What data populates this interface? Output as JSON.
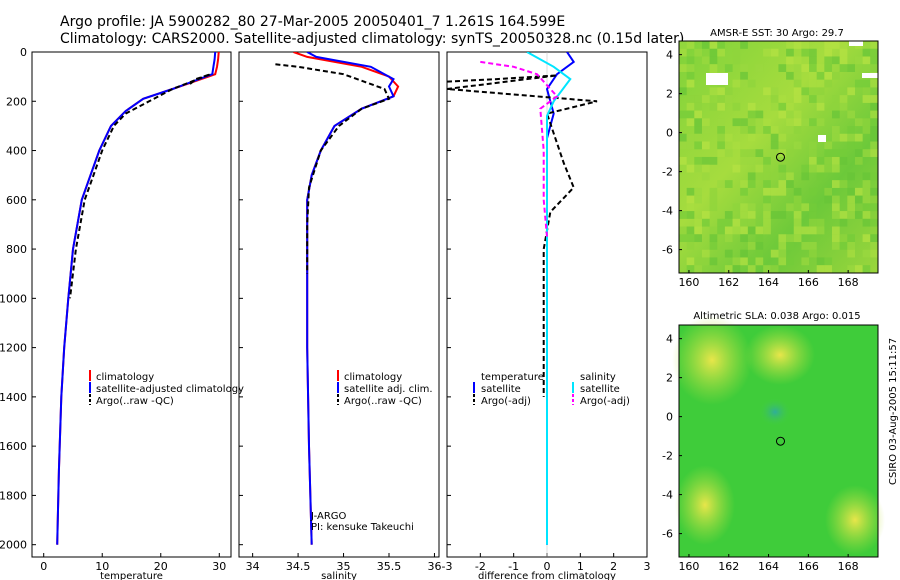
{
  "header": {
    "title_line1": "Argo profile: JA 5900282_80 27-Mar-2005 20050401_7 1.261S 164.599E",
    "title_line2": "Climatology: CARS2000. Satellite-adjusted climatology: synTS_20050328.nc (0.15d later)"
  },
  "colors": {
    "climatology": "#ff0000",
    "satellite": "#0000ff",
    "argo": "#000000",
    "salinity_sat": "#00e5ff",
    "salinity_argo": "#ff00ff",
    "sst_map": "#8ccf3c",
    "sla_map": "#33cc33"
  },
  "chart_data": [
    {
      "id": "temperature",
      "type": "line",
      "xlabel": "temperature",
      "ylabel": "",
      "xlim": [
        -2,
        32
      ],
      "ylim": [
        2050,
        0
      ],
      "xticks": [
        0,
        10,
        20,
        30
      ],
      "yticks": [
        0,
        200,
        400,
        600,
        800,
        1000,
        1200,
        1400,
        1600,
        1800,
        2000
      ],
      "legend": [
        "climatology",
        "satellite-adjusted climatology",
        "Argo(..raw -QC)"
      ],
      "series": [
        {
          "name": "climatology",
          "color": "#ff0000",
          "dash": false,
          "x": [
            29.9,
            29.8,
            29.6,
            29.3,
            22,
            17,
            14,
            11.5,
            9.5,
            8,
            6.5,
            5,
            4.2,
            3.5,
            3,
            2.6,
            2.3
          ],
          "y": [
            0,
            30,
            60,
            90,
            150,
            190,
            240,
            300,
            400,
            500,
            600,
            800,
            1000,
            1200,
            1400,
            1700,
            2000
          ]
        },
        {
          "name": "satellite-adjusted climatology",
          "color": "#0000ff",
          "dash": false,
          "x": [
            29.3,
            29.2,
            29.0,
            28.8,
            22,
            17,
            14,
            11.5,
            9.5,
            8,
            6.5,
            5,
            4.2,
            3.5,
            3,
            2.6,
            2.3
          ],
          "y": [
            0,
            30,
            60,
            90,
            150,
            190,
            240,
            300,
            400,
            500,
            600,
            800,
            1000,
            1200,
            1400,
            1700,
            2000
          ]
        },
        {
          "name": "Argo(..raw -QC)",
          "color": "#000000",
          "dash": true,
          "x": [
            25,
            26,
            28.5,
            22,
            18,
            14,
            12,
            10,
            8.5,
            7,
            5.5,
            4.5
          ],
          "y": [
            130,
            110,
            90,
            150,
            200,
            250,
            300,
            400,
            500,
            600,
            800,
            1000
          ]
        }
      ]
    },
    {
      "id": "salinity",
      "type": "line",
      "xlabel": "salinity",
      "xlim": [
        33.85,
        36.05
      ],
      "ylim": [
        2050,
        0
      ],
      "xticks": [
        34,
        34.5,
        35,
        35.5,
        36
      ],
      "legend": [
        "climatology",
        "satellite adj. clim.",
        "Argo(..raw -QC)"
      ],
      "annotation_line1": "J-ARGO",
      "annotation_line2": "PI: kensuke Takeuchi",
      "series": [
        {
          "name": "climatology",
          "color": "#ff0000",
          "dash": false,
          "x": [
            34.45,
            34.6,
            35.2,
            35.5,
            35.6,
            35.55,
            35.2,
            34.9,
            34.75,
            34.65,
            34.6,
            34.6,
            34.6,
            34.62,
            34.65
          ],
          "y": [
            0,
            20,
            60,
            100,
            140,
            180,
            230,
            300,
            400,
            500,
            600,
            800,
            1200,
            1600,
            2000
          ]
        },
        {
          "name": "satellite adj. clim.",
          "color": "#0000ff",
          "dash": false,
          "x": [
            34.6,
            34.7,
            35.3,
            35.55,
            35.5,
            35.55,
            35.2,
            34.9,
            34.75,
            34.65,
            34.6,
            34.6,
            34.6,
            34.62,
            34.65
          ],
          "y": [
            0,
            20,
            60,
            110,
            140,
            180,
            230,
            300,
            400,
            500,
            600,
            800,
            1200,
            1600,
            2000
          ]
        },
        {
          "name": "Argo(..raw -QC)",
          "color": "#000000",
          "dash": true,
          "x": [
            34.25,
            34.5,
            35.0,
            35.45,
            35.5,
            35.2,
            34.95,
            34.75,
            34.62,
            34.6,
            34.6
          ],
          "y": [
            50,
            60,
            90,
            150,
            190,
            230,
            300,
            400,
            550,
            700,
            900
          ]
        }
      ]
    },
    {
      "id": "difference",
      "type": "line",
      "xlabel": "difference from climatology",
      "xlim": [
        -3,
        3
      ],
      "ylim": [
        2050,
        0
      ],
      "xticks": [
        -3,
        -2,
        -1,
        0,
        1,
        2,
        3
      ],
      "legend_left_title": "temperature",
      "legend_right_title": "salinity",
      "legend": [
        "satellite",
        "Argo(-adj)",
        "satellite",
        "Argo(-adj)"
      ],
      "series": [
        {
          "name": "temperature satellite",
          "color": "#0000ff",
          "dash": false,
          "x": [
            0.6,
            0.8,
            0.3,
            0.0,
            0.1,
            0.2,
            0.0,
            0.0,
            0.0,
            0.0
          ],
          "y": [
            0,
            40,
            90,
            150,
            200,
            250,
            350,
            600,
            1000,
            2000
          ]
        },
        {
          "name": "temperature Argo(-adj)",
          "color": "#000000",
          "dash": true,
          "x": [
            -3.0,
            -1.5,
            0.3,
            -3.0,
            1.5,
            0.0,
            0.5,
            0.8,
            0.1,
            -0.1,
            -0.1,
            -0.1
          ],
          "y": [
            120,
            110,
            95,
            150,
            200,
            250,
            450,
            550,
            650,
            800,
            1100,
            1400
          ]
        },
        {
          "name": "salinity satellite",
          "color": "#00e5ff",
          "dash": false,
          "x": [
            -0.6,
            0.2,
            0.7,
            0.2,
            0.0,
            0.0,
            0.0,
            0.0,
            0.0
          ],
          "y": [
            0,
            60,
            110,
            200,
            260,
            400,
            800,
            1500,
            2000
          ]
        },
        {
          "name": "salinity Argo(-adj)",
          "color": "#ff00ff",
          "dash": true,
          "x": [
            -2.0,
            -1.0,
            -0.3,
            0.3,
            -0.2,
            -0.1,
            -0.1,
            0.0
          ],
          "y": [
            40,
            60,
            90,
            180,
            230,
            400,
            600,
            750
          ]
        }
      ]
    },
    {
      "id": "sst_map",
      "type": "heatmap",
      "title": "AMSR-E SST: 30 Argo: 29.7",
      "xlim": [
        159.5,
        169.5
      ],
      "ylim": [
        -7.2,
        4.7
      ],
      "xticks": [
        160,
        162,
        164,
        166,
        168
      ],
      "yticks": [
        -6,
        -4,
        -2,
        0,
        2,
        4
      ],
      "marker": [
        164.6,
        -1.26
      ]
    },
    {
      "id": "sla_map",
      "type": "heatmap",
      "title": "Altimetric SLA: 0.038 Argo: 0.015",
      "xlim": [
        159.5,
        169.5
      ],
      "ylim": [
        -7.2,
        4.7
      ],
      "xticks": [
        160,
        162,
        164,
        166,
        168
      ],
      "yticks": [
        -6,
        -4,
        -2,
        0,
        2,
        4
      ],
      "marker": [
        164.6,
        -1.26
      ]
    }
  ],
  "footer": {
    "stamp": "CSIRO 03-Aug-2005 15:11:57"
  }
}
